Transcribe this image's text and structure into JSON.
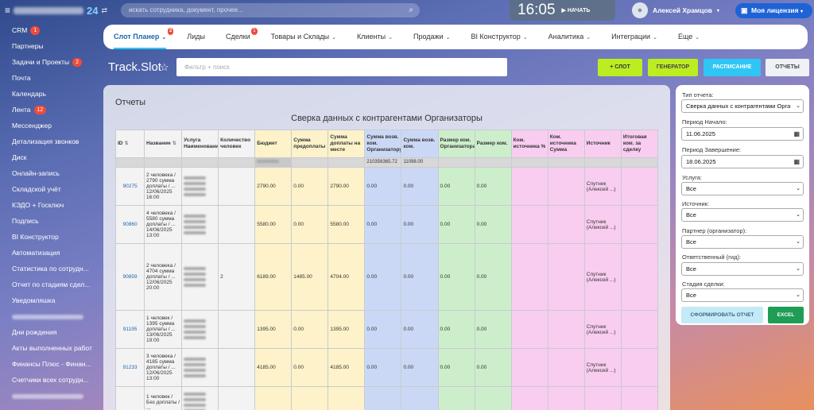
{
  "topbar": {
    "menu_icon": "hamburger-icon",
    "portal_number": "24",
    "search_placeholder": "искать сотрудника, документ, прочее...",
    "time": "16:05",
    "start_label": "НАЧАТЬ",
    "user_name": "Алексей Храмцов",
    "license_label": "Моя лицензия"
  },
  "sidebar": {
    "items": [
      {
        "label": "CRM",
        "badge": "1"
      },
      {
        "label": "Партнеры",
        "badge": ""
      },
      {
        "label": "Задачи и Проекты",
        "badge": "2"
      },
      {
        "label": "Почта",
        "badge": ""
      },
      {
        "label": "Календарь",
        "badge": ""
      },
      {
        "label": "Лента",
        "badge": "12"
      },
      {
        "label": "Мессенджер",
        "badge": ""
      },
      {
        "label": "Детализация звонков",
        "badge": ""
      },
      {
        "label": "Диск",
        "badge": ""
      },
      {
        "label": "Онлайн-запись",
        "badge": ""
      },
      {
        "label": "Складской учёт",
        "badge": ""
      },
      {
        "label": "КЭДО + Госключ",
        "badge": ""
      },
      {
        "label": "Подпись",
        "badge": ""
      },
      {
        "label": "BI Конструктор",
        "badge": ""
      },
      {
        "label": "Автоматизация",
        "badge": ""
      },
      {
        "label": "Статистика по сотрудн...",
        "badge": ""
      },
      {
        "label": "Отчет по стадиям сдел...",
        "badge": ""
      },
      {
        "label": "Уведомляшка",
        "badge": ""
      },
      {
        "label": "",
        "badge": ""
      },
      {
        "label": "Дни рождения",
        "badge": ""
      },
      {
        "label": "Акты выполненных работ",
        "badge": ""
      },
      {
        "label": "Финансы Плюс - Финан...",
        "badge": ""
      },
      {
        "label": "Счетчики всех сотрудн...",
        "badge": ""
      },
      {
        "label": "",
        "badge": ""
      }
    ]
  },
  "nav": {
    "items": [
      {
        "label": "Слот Планер",
        "badge": "2",
        "dropdown": true
      },
      {
        "label": "Лиды",
        "badge": "",
        "dropdown": false
      },
      {
        "label": "Сделки",
        "badge": "1",
        "dropdown": false
      },
      {
        "label": "Товары и Склады",
        "badge": "",
        "dropdown": true
      },
      {
        "label": "Клиенты",
        "badge": "",
        "dropdown": true
      },
      {
        "label": "Продажи",
        "badge": "",
        "dropdown": true
      },
      {
        "label": "BI Конструктор",
        "badge": "",
        "dropdown": true
      },
      {
        "label": "Аналитика",
        "badge": "",
        "dropdown": true
      },
      {
        "label": "Интеграции",
        "badge": "",
        "dropdown": true
      },
      {
        "label": "Еще",
        "badge": "",
        "dropdown": true
      }
    ]
  },
  "page": {
    "title": "Track.Slot",
    "filter_placeholder": "Фильтр + поиск",
    "buttons": {
      "slot": "+ СЛОТ",
      "generator": "ГЕНЕРАТОР",
      "schedule": "РАСПИСАНИЕ",
      "reports": "ОТЧЕТЫ"
    }
  },
  "report": {
    "panel_title": "Отчеты",
    "title": "Сверка данных с контрагентами Организаторы",
    "columns": [
      "ID",
      "Название",
      "Услуга Наименование",
      "Количество человек",
      "Бюджет",
      "Сумма предоплаты",
      "Сумма доплаты на месте",
      "Сумма возв. ком. Организатору",
      "Сумма возв. ком.",
      "Размер ком. Организатора",
      "Размер ком.",
      "Ком. источника %",
      "Ком. источника Сумма",
      "Источник",
      "Итоговая ком. за сделку"
    ],
    "summary": {
      "sbo": "210356365.72",
      "sbc": "11098.00"
    },
    "rows": [
      {
        "id": "90275",
        "name": "2 человека / 2790 сумма доплаты / ... 12/06/2025 16:00",
        "qty": "",
        "budget": "2790.00",
        "prepay": "0.00",
        "remainder": "2790.00",
        "sbo": "0.00",
        "sbc": "0.00",
        "szo": "0.00",
        "szc": "0.00",
        "source": "Спутник (Алексей ...)"
      },
      {
        "id": "90860",
        "name": "4 человека / 5580 сумма доплаты / ... 14/06/2025 13:00",
        "qty": "",
        "budget": "5580.00",
        "prepay": "0.00",
        "remainder": "5580.00",
        "sbo": "0.00",
        "sbc": "0.00",
        "szo": "0.00",
        "szc": "0.00",
        "source": "Спутник (Алексей ...)"
      },
      {
        "id": "90859",
        "name": "2 человека / 4704 сумма доплаты / ... 12/06/2025 20:00",
        "qty": "2",
        "budget": "6189.00",
        "prepay": "1485.00",
        "remainder": "4704.00",
        "sbo": "0.00",
        "sbc": "0.00",
        "szo": "0.00",
        "szc": "0.00",
        "source": "Спутник (Алексей ...)"
      },
      {
        "id": "91195",
        "name": "1 человек / 1395 сумма доплаты / ... 13/06/2025 19:00",
        "qty": "",
        "budget": "1395.00",
        "prepay": "0.00",
        "remainder": "1395.00",
        "sbo": "0.00",
        "sbc": "0.00",
        "szo": "0.00",
        "szc": "0.00",
        "source": "Спутник (Алексей ...)"
      },
      {
        "id": "91233",
        "name": "3 человека / 4185 сумма доплаты / ... 12/06/2025 13:00",
        "qty": "",
        "budget": "4185.00",
        "prepay": "0.00",
        "remainder": "4185.00",
        "sbo": "0.00",
        "sbc": "0.00",
        "szo": "0.00",
        "szc": "0.00",
        "source": "Спутник (Алексей ...)"
      },
      {
        "id": "",
        "name": "1 человек / Без доплаты / ...",
        "qty": "",
        "budget": "",
        "prepay": "",
        "remainder": "",
        "sbo": "",
        "sbc": "",
        "szo": "",
        "szc": "",
        "source": ""
      }
    ]
  },
  "filters": {
    "report_type_label": "Тип отчета:",
    "report_type_value": "Сверка данных с контрагентами Орга",
    "period_start_label": "Период Начало:",
    "period_start_value": "11.06.2025",
    "period_end_label": "Период Завершение:",
    "period_end_value": "18.06.2025",
    "service_label": "Услуга:",
    "service_value": "Все",
    "source_label": "Источник:",
    "source_value": "Все",
    "partner_label": "Партнер (организатор):",
    "partner_value": "Все",
    "responsible_label": "Ответственный (гид):",
    "responsible_value": "Все",
    "stage_label": "Стадия сделки:",
    "stage_value": "Все",
    "form_button": "СФОРМИРОВАТЬ ОТЧЕТ",
    "excel_button": "EXCEL"
  }
}
